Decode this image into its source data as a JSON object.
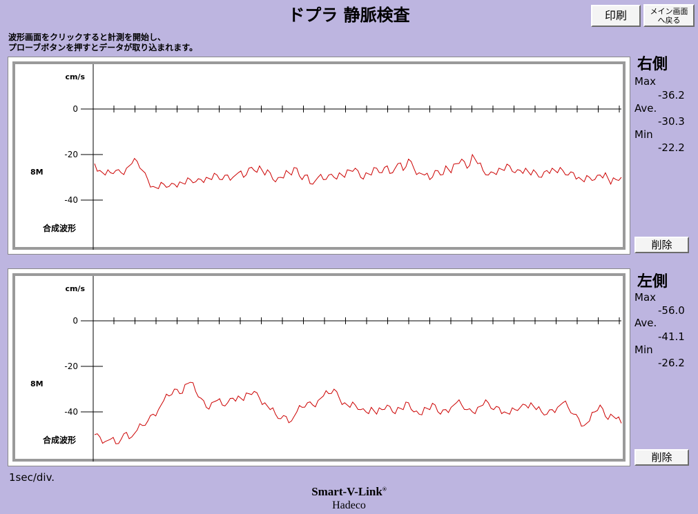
{
  "title": "ドプラ 静脈検査",
  "buttons": {
    "print": "印刷",
    "menu_line1": "メイン画面",
    "menu_line2": "へ戻る",
    "delete": "削除"
  },
  "instructions": {
    "line1": "波形画面をクリックすると計測を開始し、",
    "line2": "プローブボタンを押すとデータが取り込まれます。"
  },
  "panels": [
    {
      "side": "右側",
      "unit": "cm/s",
      "gain": "8M",
      "mode": "合成波形",
      "ticks": [
        "0",
        "-20",
        "-40"
      ],
      "stats": {
        "max_label": "Max",
        "max": "-36.2",
        "ave_label": "Ave.",
        "ave": "-30.3",
        "min_label": "Min",
        "min": "-22.2"
      },
      "waveform_color": "#cc0000",
      "waveform": [
        -24,
        -27,
        -29,
        -28,
        -27,
        -28,
        -26,
        -24,
        -23,
        -27,
        -31,
        -34,
        -35,
        -33,
        -34,
        -33,
        -32,
        -33,
        -31,
        -32,
        -31,
        -30,
        -31,
        -29,
        -31,
        -29,
        -30,
        -28,
        -30,
        -26,
        -27,
        -25,
        -29,
        -28,
        -32,
        -30,
        -27,
        -29,
        -26,
        -31,
        -29,
        -33,
        -30,
        -31,
        -29,
        -30,
        -28,
        -30,
        -27,
        -26,
        -30,
        -28,
        -29,
        -26,
        -28,
        -25,
        -28,
        -24,
        -27,
        -22,
        -26,
        -28,
        -29,
        -31,
        -27,
        -29,
        -25,
        -28,
        -24,
        -22,
        -26,
        -20,
        -24,
        -27,
        -29,
        -28,
        -26,
        -27,
        -25,
        -28,
        -27,
        -26,
        -29,
        -28,
        -30,
        -27,
        -26,
        -28,
        -27,
        -29,
        -28,
        -30,
        -32,
        -30,
        -31,
        -29,
        -28,
        -33,
        -31,
        -30
      ]
    },
    {
      "side": "左側",
      "unit": "cm/s",
      "gain": "8M",
      "mode": "合成波形",
      "ticks": [
        "0",
        "-20",
        "-40"
      ],
      "stats": {
        "max_label": "Max",
        "max": "-56.0",
        "ave_label": "Ave.",
        "ave": "-41.1",
        "min_label": "Min",
        "min": "-26.2"
      },
      "waveform_color": "#cc0000",
      "waveform": [
        -50,
        -51,
        -53,
        -52,
        -54,
        -52,
        -49,
        -51,
        -48,
        -46,
        -44,
        -41,
        -39,
        -35,
        -33,
        -30,
        -32,
        -28,
        -27,
        -31,
        -34,
        -38,
        -36,
        -35,
        -37,
        -36,
        -34,
        -33,
        -35,
        -32,
        -31,
        -34,
        -36,
        -39,
        -41,
        -43,
        -42,
        -44,
        -40,
        -38,
        -36,
        -37,
        -35,
        -33,
        -32,
        -30,
        -34,
        -36,
        -38,
        -37,
        -39,
        -40,
        -38,
        -41,
        -39,
        -37,
        -40,
        -38,
        -39,
        -36,
        -40,
        -41,
        -38,
        -39,
        -37,
        -41,
        -39,
        -38,
        -36,
        -37,
        -39,
        -40,
        -38,
        -37,
        -36,
        -39,
        -38,
        -40,
        -41,
        -39,
        -38,
        -37,
        -36,
        -39,
        -40,
        -41,
        -39,
        -38,
        -36,
        -38,
        -41,
        -43,
        -46,
        -44,
        -40,
        -37,
        -42,
        -41,
        -43,
        -45
      ]
    }
  ],
  "scale_note": "1sec/div.",
  "brand": {
    "name": "Smart-V-Link",
    "mark": "®",
    "company": "Hadeco"
  }
}
